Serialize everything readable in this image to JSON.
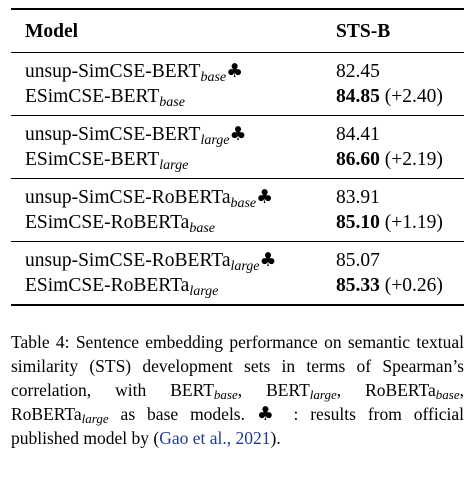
{
  "table": {
    "headers": {
      "model": "Model",
      "score": "STS-B"
    },
    "groups": [
      {
        "rows": [
          {
            "name": "unsup-SimCSE-BERT",
            "sub": "base",
            "club": "♣",
            "score": "82.45",
            "delta": ""
          },
          {
            "name": "ESimCSE-BERT",
            "sub": "base",
            "club": "",
            "score": "84.85",
            "delta": "(+2.40)"
          }
        ]
      },
      {
        "rows": [
          {
            "name": "unsup-SimCSE-BERT",
            "sub": "large",
            "club": "♣",
            "score": "84.41",
            "delta": ""
          },
          {
            "name": "ESimCSE-BERT",
            "sub": "large",
            "club": "",
            "score": "86.60",
            "delta": "(+2.19)"
          }
        ]
      },
      {
        "rows": [
          {
            "name": "unsup-SimCSE-RoBERTa",
            "sub": "base",
            "club": "♣",
            "score": "83.91",
            "delta": ""
          },
          {
            "name": "ESimCSE-RoBERTa",
            "sub": "base",
            "club": "",
            "score": "85.10",
            "delta": "(+1.19)"
          }
        ]
      },
      {
        "rows": [
          {
            "name": "unsup-SimCSE-RoBERTa",
            "sub": "large",
            "club": "♣",
            "score": "85.07",
            "delta": ""
          },
          {
            "name": "ESimCSE-RoBERTa",
            "sub": "large",
            "club": "",
            "score": "85.33",
            "delta": "(+0.26)"
          }
        ]
      }
    ]
  },
  "caption": {
    "p1": "Table 4: Sentence embedding performance on semantic textual similarity (STS) development sets in terms of Spearman’s correlation, with BERT",
    "s1": "base",
    "p2": ", BERT",
    "s2": "large",
    "p3": ", RoBERTa",
    "s3": "base",
    "p4": ", RoBERTa",
    "s4": "large",
    "p5": " as base models. ",
    "club": "♣",
    "p6": " : results from official published model by (",
    "cite": "Gao et al., 2021",
    "p7": ")."
  },
  "colors": {
    "citation": "#1f3a93"
  }
}
